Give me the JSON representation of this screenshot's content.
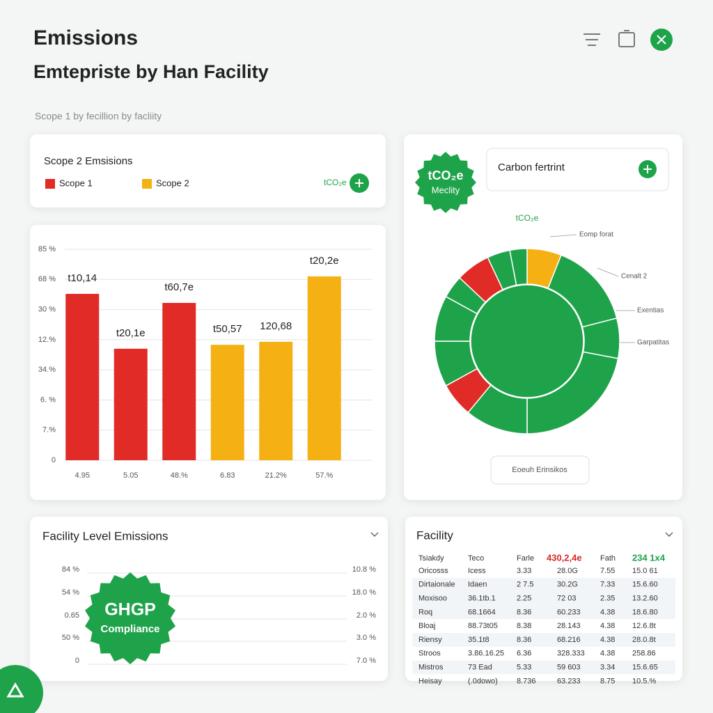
{
  "header": {
    "title": "Emissions",
    "subtitle": "Emtepriste by  Han Facility",
    "caption": "Scope 1 by fecillion by facliity"
  },
  "scope_card": {
    "title": "Scope 2 Emsisions",
    "legend": [
      {
        "name": "Scope 1",
        "color": "#e02b27"
      },
      {
        "name": "Scope 2",
        "color": "#f5b014"
      }
    ],
    "unit": "tCO₂e"
  },
  "chart_data": [
    {
      "type": "bar",
      "categories": [
        "4.95",
        "5.05",
        "48.%",
        "6.83",
        "21.2%",
        "57.%"
      ],
      "values": [
        5.52,
        3.7,
        5.22,
        3.83,
        3.93,
        6.1
      ],
      "value_labels": [
        "t10,14",
        "t20,1e",
        "t60,7e",
        "t50,57",
        "120,68",
        "t20,2e"
      ],
      "colors": [
        "#e02b27",
        "#e02b27",
        "#e02b27",
        "#f5b014",
        "#f5b014",
        "#f5b014"
      ],
      "ylim": [
        0,
        7
      ],
      "yticks": [
        0,
        {
          "value": 1,
          "label": "7.%"
        },
        {
          "value": 2,
          "label": "6. %"
        },
        {
          "value": 3,
          "label": "34.%"
        },
        {
          "value": 4,
          "label": "12.%"
        },
        {
          "value": 5,
          "label": "30 %"
        },
        {
          "value": 6,
          "label": "68 %"
        },
        {
          "value": 7,
          "label": "85 %"
        }
      ],
      "grid": true
    },
    {
      "type": "pie",
      "title": "tCO₂e",
      "values": [
        6,
        15,
        7,
        22,
        11,
        6,
        8,
        8,
        4,
        6,
        4,
        3
      ],
      "colors": [
        "#f5b014",
        "#1fa34a",
        "#1fa34a",
        "#1fa34a",
        "#1fa34a",
        "#e02b27",
        "#1fa34a",
        "#1fa34a",
        "#1fa34a",
        "#e02b27",
        "#1fa34a",
        "#1fa34a"
      ],
      "annotations": [
        "Eomp forat",
        "Cenalt 2",
        "Exentias",
        "Garpatitas"
      ]
    }
  ],
  "carbon_card": {
    "badge": [
      "tCO₂e",
      "Meclity"
    ],
    "title": "Carbon fertrint",
    "button": "Eoeuh Erinsikos"
  },
  "facility_level": {
    "title": "Facility Level Emissions",
    "left_labels": [
      "84 %",
      "54 %",
      "0.65",
      "50 %",
      "0"
    ],
    "right_labels": [
      "10.8 %",
      "18.0 %",
      "2.0 %",
      "3.0 %",
      "7.0 %"
    ],
    "badge": [
      "GHGP",
      "Compliance"
    ]
  },
  "facility_table": {
    "title": "Facility",
    "header": [
      "Tsiakdy",
      "Teco",
      "Farle",
      "430,2,4e",
      "Fath",
      "234 1x4"
    ],
    "rows": [
      [
        "Oricosss",
        "Icess",
        "3.33",
        "28.0G",
        "7.55",
        "15.0 61"
      ],
      [
        "Dirtaionale",
        "Idaen",
        "2 7.5",
        "30.2G",
        "7.33",
        "15.6.60"
      ],
      [
        "Moxisoo",
        "36.1tb.1",
        "2.25",
        "72 03",
        "2.35",
        "13.2.60"
      ],
      [
        "Roq",
        "68.1664",
        "8.36",
        "60.233",
        "4.38",
        "18.6.80"
      ],
      [
        "Bloaj",
        "88.73t05",
        "8.38",
        "28.143",
        "4.38",
        "12.6.8t"
      ],
      [
        "Riensy",
        "35.1t8",
        "8.36",
        "68.216",
        "4.38",
        "28.0.8t"
      ],
      [
        "Stroos",
        "3.86.16.25",
        "6.36",
        "328.333",
        "4.38",
        "258.86"
      ],
      [
        "Mistros",
        "73 Ead",
        "5.33",
        "59 603",
        "3.34",
        "15.6.65"
      ],
      [
        "Heisay",
        "(.0dowo)",
        "8.736",
        "63.233",
        "8.75",
        "10.5.%"
      ]
    ]
  }
}
